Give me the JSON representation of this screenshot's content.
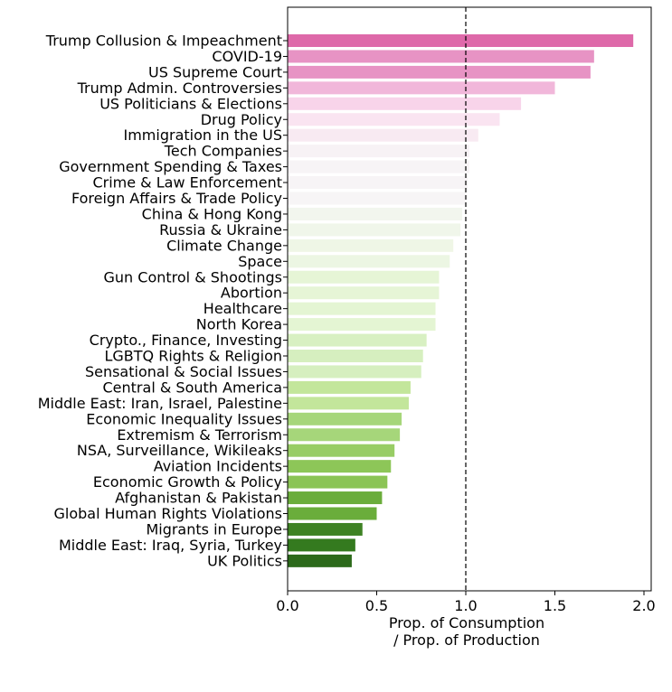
{
  "chart_data": {
    "type": "bar",
    "orientation": "horizontal",
    "title": "",
    "xlabel_line1": "Prop. of Consumption",
    "xlabel_line2": "/ Prop. of Production",
    "ylabel": "",
    "xlim": [
      0.0,
      2.05
    ],
    "xticks": [
      {
        "value": 0.0,
        "label": "0.0"
      },
      {
        "value": 0.5,
        "label": "0.5"
      },
      {
        "value": 1.0,
        "label": "1.0"
      },
      {
        "value": 1.5,
        "label": "1.5"
      },
      {
        "value": 2.0,
        "label": "2.0"
      }
    ],
    "reference_line": {
      "value": 1.0,
      "style": "dashed"
    },
    "grid": false,
    "categories": [
      "Trump Collusion & Impeachment",
      "COVID-19",
      "US Supreme Court",
      "Trump Admin. Controversies",
      "US Politicians & Elections",
      "Drug Policy",
      "Immigration in the US",
      "Tech Companies",
      "Government Spending & Taxes",
      "Crime & Law Enforcement",
      "Foreign Affairs & Trade Policy",
      "China & Hong Kong",
      "Russia & Ukraine",
      "Climate Change",
      "Space",
      "Gun Control & Shootings",
      "Abortion",
      "Healthcare",
      "North Korea",
      "Crypto., Finance, Investing",
      "LGBTQ Rights & Religion",
      "Sensational & Social Issues",
      "Central & South America",
      "Middle East: Iran, Israel, Palestine",
      "Economic Inequality Issues",
      "Extremism & Terrorism",
      "NSA, Surveillance, Wikileaks",
      "Aviation Incidents",
      "Economic Growth & Policy",
      "Afghanistan & Pakistan",
      "Global Human Rights Violations",
      "Migrants in Europe",
      "Middle East: Iraq, Syria, Turkey",
      "UK Politics"
    ],
    "values": [
      1.94,
      1.72,
      1.7,
      1.5,
      1.31,
      1.19,
      1.07,
      1.02,
      1.02,
      1.01,
      1.0,
      0.98,
      0.97,
      0.93,
      0.91,
      0.85,
      0.85,
      0.83,
      0.83,
      0.78,
      0.76,
      0.75,
      0.69,
      0.68,
      0.64,
      0.63,
      0.6,
      0.58,
      0.56,
      0.53,
      0.5,
      0.42,
      0.38,
      0.36
    ],
    "colors": [
      "#de69a9",
      "#e793c4",
      "#e793c4",
      "#f1b7da",
      "#f8d4ea",
      "#fae4f1",
      "#f8eaf2",
      "#f7f2f5",
      "#f7f4f6",
      "#f7f4f6",
      "#f7f5f6",
      "#f2f6ee",
      "#f0f6ea",
      "#eff6e6",
      "#ecf6e3",
      "#e6f5d6",
      "#e6f5d6",
      "#e4f5d3",
      "#e4f5d3",
      "#d8f0c2",
      "#d6efbf",
      "#d6efbf",
      "#c3e69b",
      "#c3e69b",
      "#a6d67a",
      "#a6d67a",
      "#98cd65",
      "#8dc658",
      "#8bc455",
      "#6aad3b",
      "#6aad3b",
      "#3e8223",
      "#347a1f",
      "#2c6a1b"
    ]
  }
}
